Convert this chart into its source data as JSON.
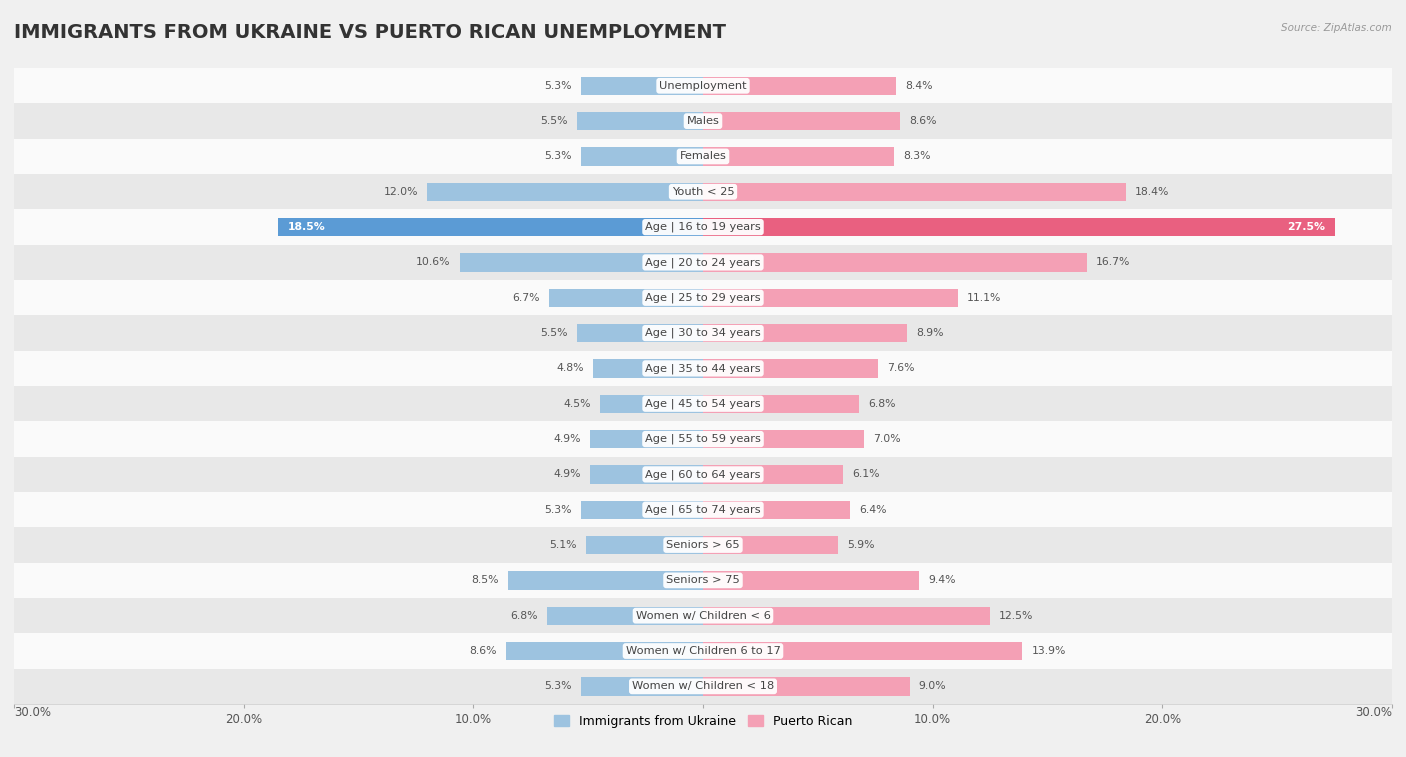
{
  "title": "IMMIGRANTS FROM UKRAINE VS PUERTO RICAN UNEMPLOYMENT",
  "source": "Source: ZipAtlas.com",
  "categories": [
    "Unemployment",
    "Males",
    "Females",
    "Youth < 25",
    "Age | 16 to 19 years",
    "Age | 20 to 24 years",
    "Age | 25 to 29 years",
    "Age | 30 to 34 years",
    "Age | 35 to 44 years",
    "Age | 45 to 54 years",
    "Age | 55 to 59 years",
    "Age | 60 to 64 years",
    "Age | 65 to 74 years",
    "Seniors > 65",
    "Seniors > 75",
    "Women w/ Children < 6",
    "Women w/ Children 6 to 17",
    "Women w/ Children < 18"
  ],
  "ukraine_values": [
    5.3,
    5.5,
    5.3,
    12.0,
    18.5,
    10.6,
    6.7,
    5.5,
    4.8,
    4.5,
    4.9,
    4.9,
    5.3,
    5.1,
    8.5,
    6.8,
    8.6,
    5.3
  ],
  "puerto_rican_values": [
    8.4,
    8.6,
    8.3,
    18.4,
    27.5,
    16.7,
    11.1,
    8.9,
    7.6,
    6.8,
    7.0,
    6.1,
    6.4,
    5.9,
    9.4,
    12.5,
    13.9,
    9.0
  ],
  "ukraine_color": "#9dc3e0",
  "puerto_rican_color": "#f4a0b5",
  "ukraine_highlight_color": "#5b9bd5",
  "puerto_rican_highlight_color": "#e96080",
  "axis_max": 30.0,
  "bar_height": 0.52,
  "bg_color": "#f0f0f0",
  "row_even_color": "#fafafa",
  "row_odd_color": "#e8e8e8",
  "label_fontsize": 8.2,
  "title_fontsize": 14,
  "value_fontsize": 7.8,
  "highlight_rows": [
    "Age | 16 to 19 years"
  ]
}
